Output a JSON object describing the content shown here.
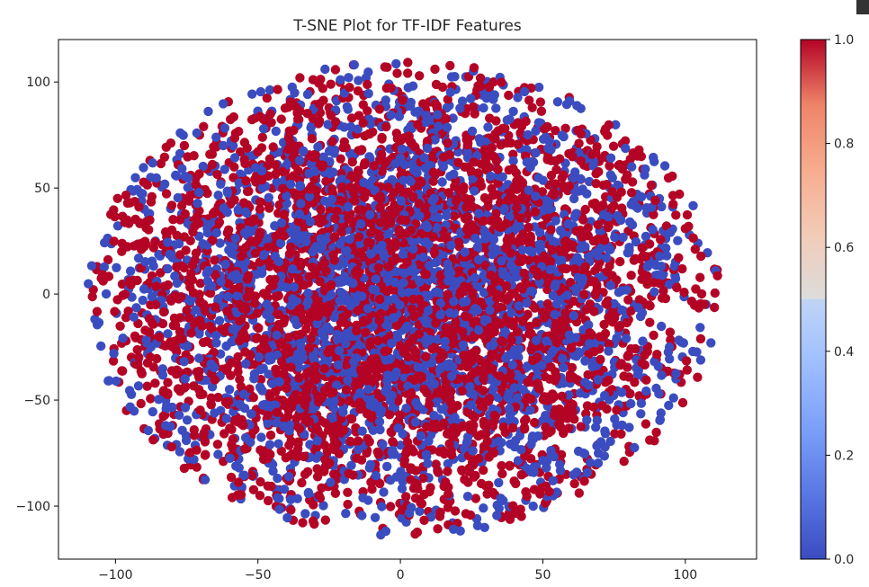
{
  "chart_data": {
    "type": "scatter",
    "title": "T-SNE Plot for TF-IDF Features",
    "xlabel": "",
    "ylabel": "",
    "xlim": [
      -120,
      125
    ],
    "ylim": [
      -125,
      120
    ],
    "xticks": [
      -100,
      -50,
      0,
      50,
      100
    ],
    "xtick_labels": [
      "−100",
      "−50",
      "0",
      "50",
      "100"
    ],
    "yticks": [
      -100,
      -50,
      0,
      50,
      100
    ],
    "ytick_labels": [
      "−100",
      "−50",
      "0",
      "50",
      "100"
    ],
    "colormap": "coolwarm",
    "colormap_low": "#3b4cc0",
    "colormap_mid": "#dddcdc",
    "colormap_high": "#b40426",
    "colorbar": {
      "range": [
        0.0,
        1.0
      ],
      "ticks": [
        0.0,
        0.2,
        0.4,
        0.6,
        0.8,
        1.0
      ],
      "tick_labels": [
        "0.0",
        "0.2",
        "0.4",
        "0.6",
        "0.8",
        "1.0"
      ]
    },
    "classes": [
      0,
      1
    ],
    "class_colors": [
      "#3b4cc0",
      "#b40426"
    ],
    "point_count_approx": 6000,
    "point_cloud_extent": {
      "x_range": [
        -110,
        112
      ],
      "y_range": [
        -114,
        110
      ]
    },
    "grid": false,
    "legend": "none"
  }
}
